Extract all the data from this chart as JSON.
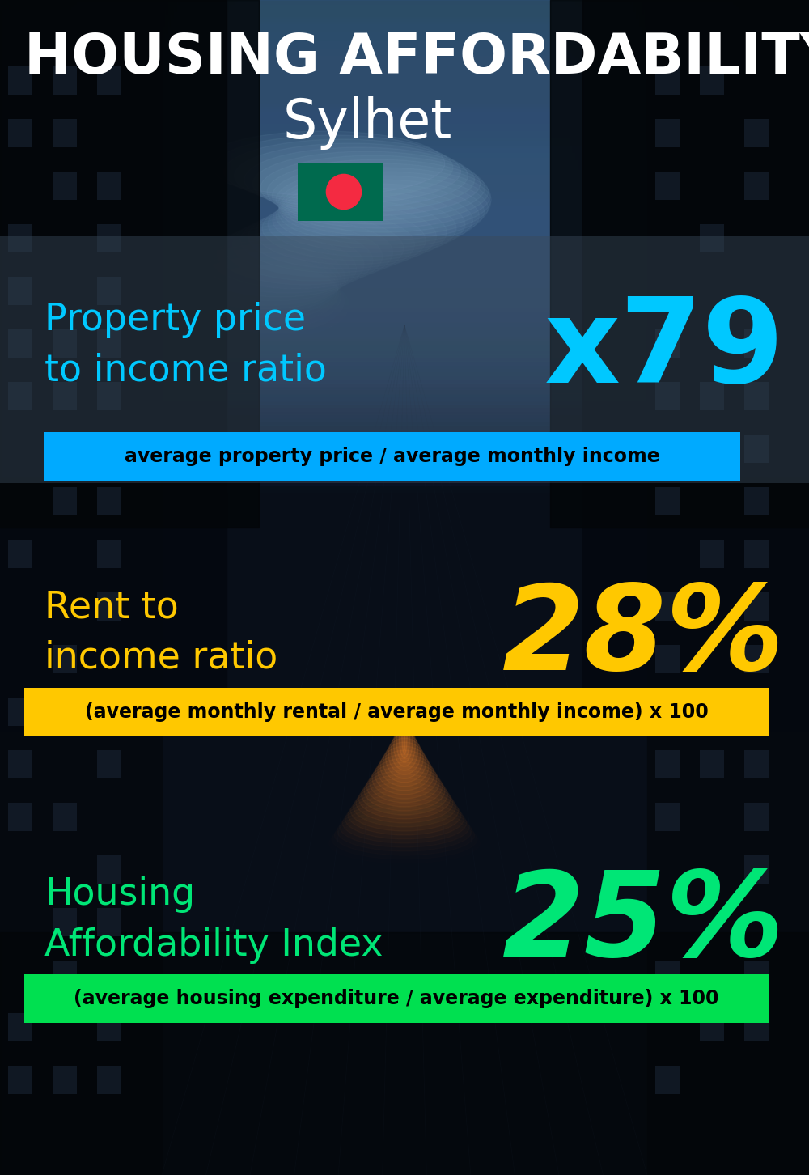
{
  "title_line1": "HOUSING AFFORDABILITY",
  "title_line2": "Sylhet",
  "bg_color": "#080e18",
  "section1_label": "Property price\nto income ratio",
  "section1_value": "x79",
  "section1_label_color": "#00c8ff",
  "section1_value_color": "#00c8ff",
  "section1_formula": "average property price / average monthly income",
  "section1_formula_bg": "#00aaff",
  "section1_formula_color": "#000000",
  "section2_label": "Rent to\nincome ratio",
  "section2_value": "28%",
  "section2_label_color": "#ffc800",
  "section2_value_color": "#ffc800",
  "section2_formula": "(average monthly rental / average monthly income) x 100",
  "section2_formula_bg": "#ffc800",
  "section2_formula_color": "#000000",
  "section3_label": "Housing\nAffordability Index",
  "section3_value": "25%",
  "section3_label_color": "#00e676",
  "section3_value_color": "#00e676",
  "section3_formula": "(average housing expenditure / average expenditure) x 100",
  "section3_formula_bg": "#00e050",
  "section3_formula_color": "#000000",
  "flag_green": "#006a4e",
  "flag_red": "#f42a41",
  "title_color": "#ffffff",
  "panel_color": "#1c2a3a"
}
